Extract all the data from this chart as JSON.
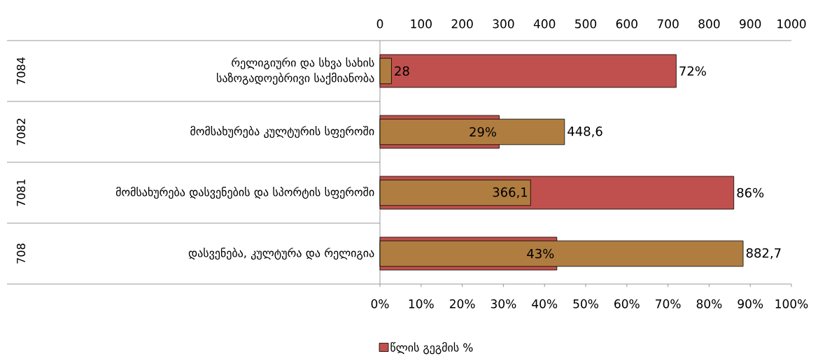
{
  "chart_data": {
    "type": "bar",
    "orientation": "horizontal",
    "categories": [
      "რელიგიური და სხვა სახის საზოგადოებრივი საქმიანობა",
      "მომსახურება კულტურის სფეროში",
      "მომსახურება დასვენების და სპორტის სფეროში",
      "დასვენება, კულტურა და რელიგია"
    ],
    "series": [
      {
        "name": "წლის გეგმის %",
        "color": "#c0504d",
        "values": [
          72,
          29,
          86,
          43
        ],
        "value_labels": [
          "72%",
          "29%",
          "86%",
          "43%"
        ]
      },
      {
        "color": "#b07d40",
        "axis": "x2",
        "values": [
          28,
          448.6,
          366.1,
          882.7
        ],
        "value_labels": [
          "28",
          "448,6",
          "366,1",
          "882,7"
        ]
      }
    ],
    "xlim": [
      0,
      100
    ],
    "xticks": [
      {
        "value": 0,
        "label": "0%"
      },
      {
        "value": 10,
        "label": "10%"
      },
      {
        "value": 20,
        "label": "20%"
      },
      {
        "value": 30,
        "label": "30%"
      },
      {
        "value": 40,
        "label": "40%"
      },
      {
        "value": 50,
        "label": "50%"
      },
      {
        "value": 60,
        "label": "60%"
      },
      {
        "value": 70,
        "label": "70%"
      },
      {
        "value": 80,
        "label": "80%"
      },
      {
        "value": 90,
        "label": "90%"
      },
      {
        "value": 100,
        "label": "100%"
      }
    ],
    "x2lim": [
      0,
      1000
    ],
    "x2ticks": [
      0,
      100,
      200,
      300,
      400,
      500,
      600,
      700,
      800,
      900,
      1000
    ],
    "legend": "bottom",
    "annotations": [
      "7084",
      "7082",
      "7081",
      "708"
    ]
  }
}
